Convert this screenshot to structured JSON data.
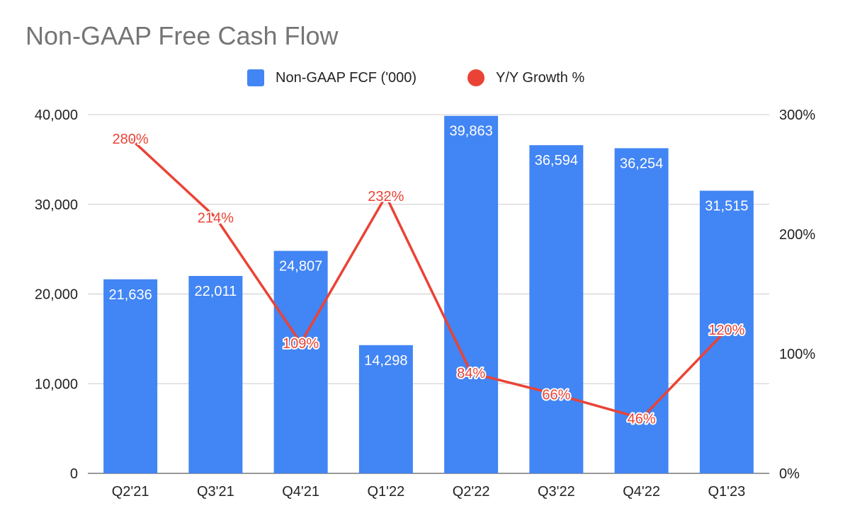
{
  "chart_data": {
    "type": "bar",
    "title": "Non-GAAP Free Cash Flow",
    "categories": [
      "Q2'21",
      "Q3'21",
      "Q4'21",
      "Q1'22",
      "Q2'22",
      "Q3'22",
      "Q4'22",
      "Q1'23"
    ],
    "series": [
      {
        "name": "Non-GAAP FCF ('000)",
        "type": "bar",
        "axis": "left",
        "color": "#4285f4",
        "values": [
          21636,
          22011,
          24807,
          14298,
          39863,
          36594,
          36254,
          31515
        ],
        "labels": [
          "21,636",
          "22,011",
          "24,807",
          "14,298",
          "39,863",
          "36,594",
          "36,254",
          "31,515"
        ]
      },
      {
        "name": "Y/Y Growth %",
        "type": "line",
        "axis": "right",
        "color": "#ea4335",
        "values": [
          280,
          214,
          109,
          232,
          84,
          66,
          46,
          120
        ],
        "labels": [
          "280%",
          "214%",
          "109%",
          "232%",
          "84%",
          "66%",
          "46%",
          "120%"
        ]
      }
    ],
    "y_left": {
      "ylim": [
        0,
        40000
      ],
      "ticks": [
        "0",
        "10,000",
        "20,000",
        "30,000",
        "40,000"
      ]
    },
    "y_right": {
      "ylim": [
        0,
        300
      ],
      "ticks": [
        "0%",
        "100%",
        "200%",
        "300%"
      ]
    },
    "xlabel": "",
    "ylabel": "",
    "legend_position": "top-center",
    "grid": true
  }
}
